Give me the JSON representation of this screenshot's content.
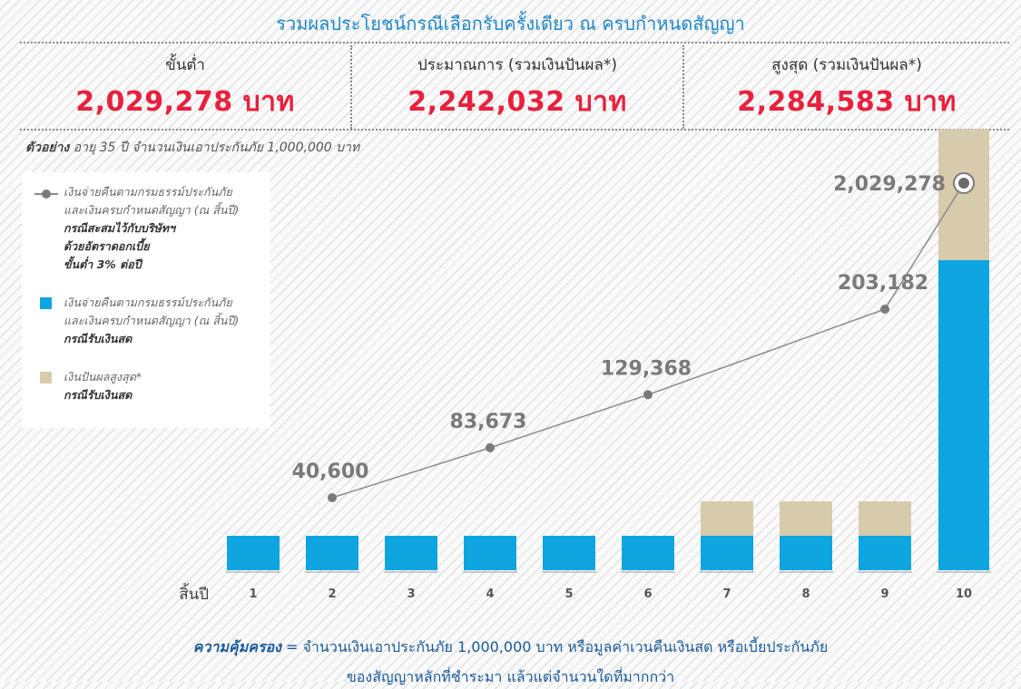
{
  "title": "รวมผลประโยชน์กรณีเลือกรับครั้งเดียว ณ ครบกำหนดสัญญา",
  "summary": [
    {
      "label": "ขั้นต่ำ",
      "value": "2,029,278 บาท"
    },
    {
      "label": "ประมาณการ (รวมเงินปันผล*)",
      "value": "2,242,032 บาท"
    },
    {
      "label": "สูงสุด (รวมเงินปันผล*)",
      "value": "2,284,583 บาท"
    }
  ],
  "example": {
    "prefix": "ตัวอย่าง",
    "text": "อายุ 35 ปี จำนวนเงินเอาประกันภัย 1,000,000 บาท"
  },
  "legend": [
    {
      "symbol": "line-dot",
      "lines": [
        "เงินจ่ายคืนตามกรมธรรม์ประกันภัย",
        "และเงินครบกำหนดสัญญา (ณ สิ้นปี)"
      ],
      "bold": [
        "กรณีสะสมไว้กับบริษัทฯ",
        "ด้วยอัตราดอกเบี้ย",
        "ขั้นต่ำ 3% ต่อปี"
      ]
    },
    {
      "symbol": "blue-square",
      "lines": [
        "เงินจ่ายคืนตามกรมธรรม์ประกันภัย",
        "และเงินครบกำหนดสัญญา (ณ สิ้นปี)"
      ],
      "bold": [
        "กรณีรับเงินสด"
      ]
    },
    {
      "symbol": "beige-square",
      "lines": [
        "เงินปันผลสูงสุด*"
      ],
      "bold": [
        "กรณีรับเงินสด"
      ]
    }
  ],
  "chart_data": {
    "type": "bar+line",
    "x_axis_label": "สิ้นปี",
    "categories": [
      "1",
      "2",
      "3",
      "4",
      "5",
      "6",
      "7",
      "8",
      "9",
      "10"
    ],
    "bar_series": [
      {
        "name": "cash",
        "color": "#0ea5e0",
        "values": [
          1,
          1,
          1,
          1,
          1,
          1,
          1,
          1,
          1,
          9
        ]
      },
      {
        "name": "dividend",
        "color": "#d8cbab",
        "values": [
          0,
          0,
          0,
          0,
          0,
          0,
          1,
          1,
          1,
          3.8
        ]
      }
    ],
    "line_series": {
      "color": "#8a8a8a",
      "points": [
        {
          "x": "2",
          "value": 40600,
          "label": "40,600"
        },
        {
          "x": "4",
          "value": 83673,
          "label": "83,673"
        },
        {
          "x": "6",
          "value": 129368,
          "label": "129,368"
        },
        {
          "x": "9",
          "value": 203182,
          "label": "203,182"
        },
        {
          "x": "10",
          "value": 2029278,
          "label": "2,029,278"
        }
      ]
    }
  },
  "footer": {
    "bold": "ความคุ้มครอง",
    "line1": "= จำนวนเงินเอาประกันภัย 1,000,000 บาท หรือมูลค่าเวนคืนเงินสด หรือเบี้ยประกันภัย",
    "line2": "ของสัญญาหลักที่ชำระมา แล้วแต่จำนวนใดที่มากกว่า"
  }
}
